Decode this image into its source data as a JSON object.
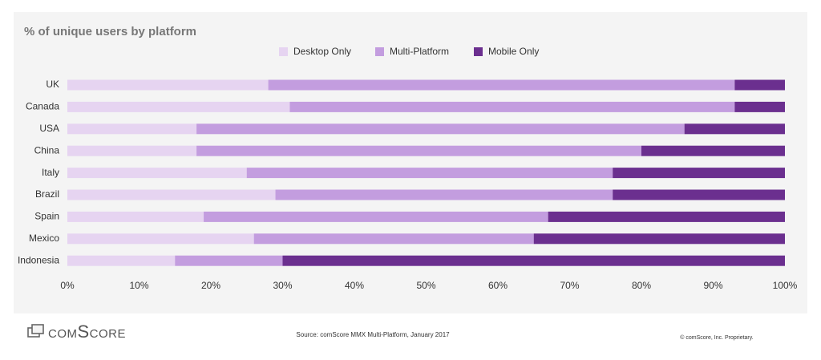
{
  "chart_data": {
    "type": "stacked-bar-horizontal",
    "title": "% of unique users by platform",
    "categories": [
      "UK",
      "Canada",
      "USA",
      "China",
      "Italy",
      "Brazil",
      "Spain",
      "Mexico",
      "Indonesia"
    ],
    "series": [
      {
        "name": "Desktop Only",
        "color": "#e6d4f1",
        "values": [
          28,
          31,
          18,
          18,
          25,
          29,
          19,
          26,
          15
        ]
      },
      {
        "name": "Multi-Platform",
        "color": "#c39ddf",
        "values": [
          65,
          62,
          68,
          62,
          51,
          47,
          48,
          39,
          15
        ]
      },
      {
        "name": "Mobile Only",
        "color": "#6b2f8f",
        "values": [
          7,
          7,
          14,
          20,
          24,
          24,
          33,
          35,
          70
        ]
      }
    ],
    "xlim": [
      0,
      100
    ],
    "xticks": [
      {
        "value": 0,
        "label": "0%"
      },
      {
        "value": 10,
        "label": "10%"
      },
      {
        "value": 20,
        "label": "20%"
      },
      {
        "value": 30,
        "label": "30%"
      },
      {
        "value": 40,
        "label": "40%"
      },
      {
        "value": 50,
        "label": "50%"
      },
      {
        "value": 60,
        "label": "60%"
      },
      {
        "value": 70,
        "label": "70%"
      },
      {
        "value": 80,
        "label": "80%"
      },
      {
        "value": 90,
        "label": "90%"
      },
      {
        "value": 100,
        "label": "100%"
      }
    ]
  },
  "footer": {
    "logo": "comScore",
    "source": "Source: comScore MMX Multi-Platform, January 2017",
    "copyright": "© comScore, Inc. Proprietary."
  }
}
